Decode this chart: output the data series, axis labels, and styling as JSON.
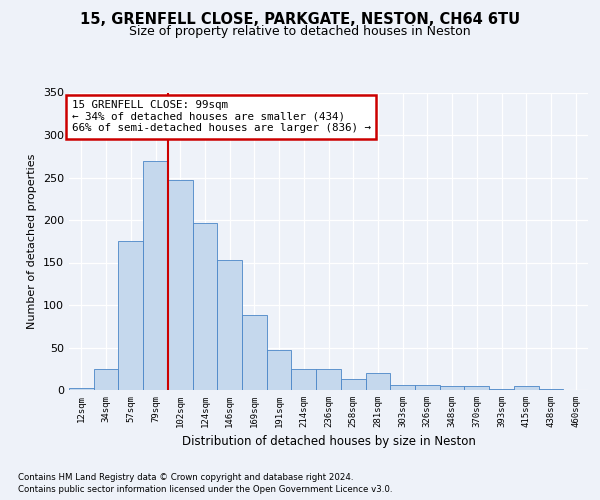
{
  "title1": "15, GRENFELL CLOSE, PARKGATE, NESTON, CH64 6TU",
  "title2": "Size of property relative to detached houses in Neston",
  "xlabel": "Distribution of detached houses by size in Neston",
  "ylabel": "Number of detached properties",
  "footnote1": "Contains HM Land Registry data © Crown copyright and database right 2024.",
  "footnote2": "Contains public sector information licensed under the Open Government Licence v3.0.",
  "annotation_line1": "15 GRENFELL CLOSE: 99sqm",
  "annotation_line2": "← 34% of detached houses are smaller (434)",
  "annotation_line3": "66% of semi-detached houses are larger (836) →",
  "bar_labels": [
    "12sqm",
    "34sqm",
    "57sqm",
    "79sqm",
    "102sqm",
    "124sqm",
    "146sqm",
    "169sqm",
    "191sqm",
    "214sqm",
    "236sqm",
    "258sqm",
    "281sqm",
    "303sqm",
    "326sqm",
    "348sqm",
    "370sqm",
    "393sqm",
    "415sqm",
    "438sqm",
    "460sqm"
  ],
  "bar_values": [
    2,
    25,
    175,
    270,
    247,
    197,
    153,
    88,
    47,
    25,
    25,
    13,
    20,
    6,
    6,
    5,
    5,
    1,
    5,
    1,
    0
  ],
  "bar_color": "#c5d8ed",
  "bar_edge_color": "#4a86c8",
  "vline_color": "#cc0000",
  "vline_x": 3.5,
  "background_color": "#eef2f9",
  "ylim": [
    0,
    350
  ],
  "yticks": [
    0,
    50,
    100,
    150,
    200,
    250,
    300,
    350
  ]
}
